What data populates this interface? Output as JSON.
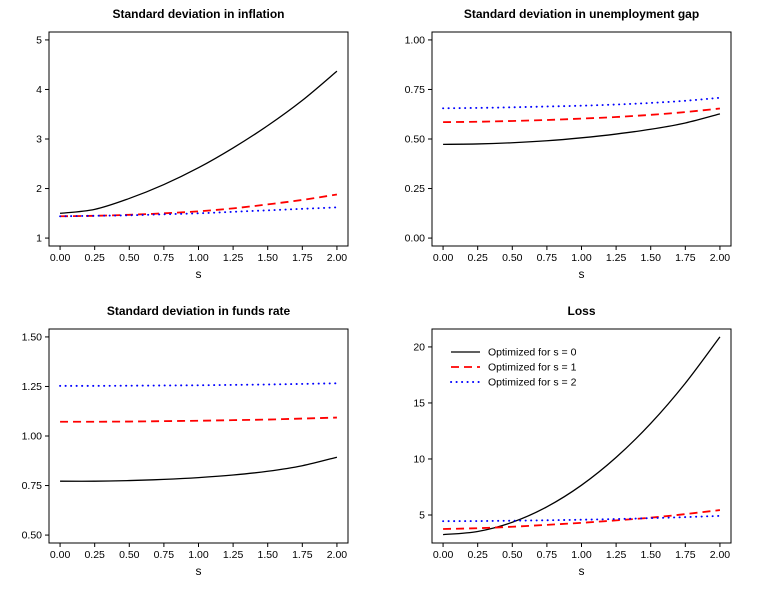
{
  "figure": {
    "background": "#ffffff"
  },
  "palette": {
    "black": "#000000",
    "red": "#ff0000",
    "blue": "#0000ff"
  },
  "chart_data": [
    {
      "id": "sd-inflation",
      "type": "line",
      "title": "Standard deviation in inflation",
      "xlabel": "s",
      "x": [
        0,
        0.25,
        0.5,
        0.75,
        1,
        1.25,
        1.5,
        1.75,
        2
      ],
      "xticks": [
        0,
        0.25,
        0.5,
        0.75,
        1,
        1.25,
        1.5,
        1.75,
        2
      ],
      "xtick_labels": [
        "0.00",
        "0.25",
        "0.50",
        "0.75",
        "1.00",
        "1.25",
        "1.50",
        "1.75",
        "2.00"
      ],
      "yticks": [
        1,
        2,
        3,
        4,
        5
      ],
      "ytick_labels": [
        "1",
        "2",
        "3",
        "4",
        "5"
      ],
      "xlim": [
        -0.08,
        2.08
      ],
      "ylim": [
        0.84,
        5.16
      ],
      "grid": false,
      "legend": false,
      "series": [
        {
          "name": "Optimized for s = 0",
          "color": "#000000",
          "style": "solid",
          "values": [
            1.5,
            1.58,
            1.8,
            2.08,
            2.42,
            2.82,
            3.27,
            3.78,
            4.37
          ]
        },
        {
          "name": "Optimized for s = 1",
          "color": "#ff0000",
          "style": "dashed",
          "values": [
            1.44,
            1.45,
            1.47,
            1.5,
            1.54,
            1.6,
            1.68,
            1.77,
            1.88
          ]
        },
        {
          "name": "Optimized for s = 2",
          "color": "#0000ff",
          "style": "dotted",
          "values": [
            1.44,
            1.45,
            1.46,
            1.48,
            1.5,
            1.53,
            1.56,
            1.59,
            1.62
          ]
        }
      ]
    },
    {
      "id": "sd-unemployment-gap",
      "type": "line",
      "title": "Standard deviation in unemployment gap",
      "xlabel": "s",
      "x": [
        0,
        0.25,
        0.5,
        0.75,
        1,
        1.25,
        1.5,
        1.75,
        2
      ],
      "xticks": [
        0,
        0.25,
        0.5,
        0.75,
        1,
        1.25,
        1.5,
        1.75,
        2
      ],
      "xtick_labels": [
        "0.00",
        "0.25",
        "0.50",
        "0.75",
        "1.00",
        "1.25",
        "1.50",
        "1.75",
        "2.00"
      ],
      "yticks": [
        0,
        0.25,
        0.5,
        0.75,
        1
      ],
      "ytick_labels": [
        "0.00",
        "0.25",
        "0.50",
        "0.75",
        "1.00"
      ],
      "xlim": [
        -0.08,
        2.08
      ],
      "ylim": [
        -0.04,
        1.04
      ],
      "grid": false,
      "legend": false,
      "series": [
        {
          "name": "Optimized for s = 0",
          "color": "#000000",
          "style": "solid",
          "values": [
            0.473,
            0.475,
            0.481,
            0.491,
            0.506,
            0.525,
            0.549,
            0.581,
            0.627
          ]
        },
        {
          "name": "Optimized for s = 1",
          "color": "#ff0000",
          "style": "dashed",
          "values": [
            0.585,
            0.587,
            0.591,
            0.596,
            0.603,
            0.611,
            0.622,
            0.636,
            0.654
          ]
        },
        {
          "name": "Optimized for s = 2",
          "color": "#0000ff",
          "style": "dotted",
          "values": [
            0.655,
            0.657,
            0.66,
            0.664,
            0.668,
            0.674,
            0.682,
            0.693,
            0.708
          ]
        }
      ]
    },
    {
      "id": "sd-funds-rate",
      "type": "line",
      "title": "Standard deviation in funds rate",
      "xlabel": "s",
      "x": [
        0,
        0.25,
        0.5,
        0.75,
        1,
        1.25,
        1.5,
        1.75,
        2
      ],
      "xticks": [
        0,
        0.25,
        0.5,
        0.75,
        1,
        1.25,
        1.5,
        1.75,
        2
      ],
      "xtick_labels": [
        "0.00",
        "0.25",
        "0.50",
        "0.75",
        "1.00",
        "1.25",
        "1.50",
        "1.75",
        "2.00"
      ],
      "yticks": [
        0.5,
        0.75,
        1,
        1.25,
        1.5
      ],
      "ytick_labels": [
        "0.50",
        "0.75",
        "1.00",
        "1.25",
        "1.50"
      ],
      "xlim": [
        -0.08,
        2.08
      ],
      "ylim": [
        0.46,
        1.54
      ],
      "grid": false,
      "legend": false,
      "series": [
        {
          "name": "Optimized for s = 0",
          "color": "#000000",
          "style": "solid",
          "values": [
            0.772,
            0.772,
            0.775,
            0.781,
            0.79,
            0.803,
            0.822,
            0.85,
            0.893
          ]
        },
        {
          "name": "Optimized for s = 1",
          "color": "#ff0000",
          "style": "dashed",
          "values": [
            1.072,
            1.072,
            1.073,
            1.075,
            1.077,
            1.08,
            1.083,
            1.088,
            1.093
          ]
        },
        {
          "name": "Optimized for s = 2",
          "color": "#0000ff",
          "style": "dotted",
          "values": [
            1.253,
            1.253,
            1.254,
            1.255,
            1.256,
            1.258,
            1.26,
            1.263,
            1.266
          ]
        }
      ]
    },
    {
      "id": "loss",
      "type": "line",
      "title": "Loss",
      "xlabel": "s",
      "x": [
        0,
        0.25,
        0.5,
        0.75,
        1,
        1.25,
        1.5,
        1.75,
        2
      ],
      "xticks": [
        0,
        0.25,
        0.5,
        0.75,
        1,
        1.25,
        1.5,
        1.75,
        2
      ],
      "xtick_labels": [
        "0.00",
        "0.25",
        "0.50",
        "0.75",
        "1.00",
        "1.25",
        "1.50",
        "1.75",
        "2.00"
      ],
      "yticks": [
        5,
        10,
        15,
        20
      ],
      "ytick_labels": [
        "5",
        "10",
        "15",
        "20"
      ],
      "xlim": [
        -0.08,
        2.08
      ],
      "ylim": [
        2.5,
        21.6
      ],
      "grid": false,
      "legend": true,
      "legend_position": "top-left",
      "series": [
        {
          "name": "Optimized for s = 0",
          "color": "#000000",
          "style": "solid",
          "values": [
            3.25,
            3.53,
            4.35,
            5.73,
            7.66,
            10.14,
            13.17,
            16.76,
            20.9
          ]
        },
        {
          "name": "Optimized for s = 1",
          "color": "#ff0000",
          "style": "dashed",
          "values": [
            3.75,
            3.82,
            3.95,
            4.12,
            4.3,
            4.52,
            4.76,
            5.08,
            5.44
          ]
        },
        {
          "name": "Optimized for s = 2",
          "color": "#0000ff",
          "style": "dotted",
          "values": [
            4.45,
            4.46,
            4.49,
            4.53,
            4.58,
            4.64,
            4.72,
            4.81,
            4.92
          ]
        }
      ]
    }
  ]
}
